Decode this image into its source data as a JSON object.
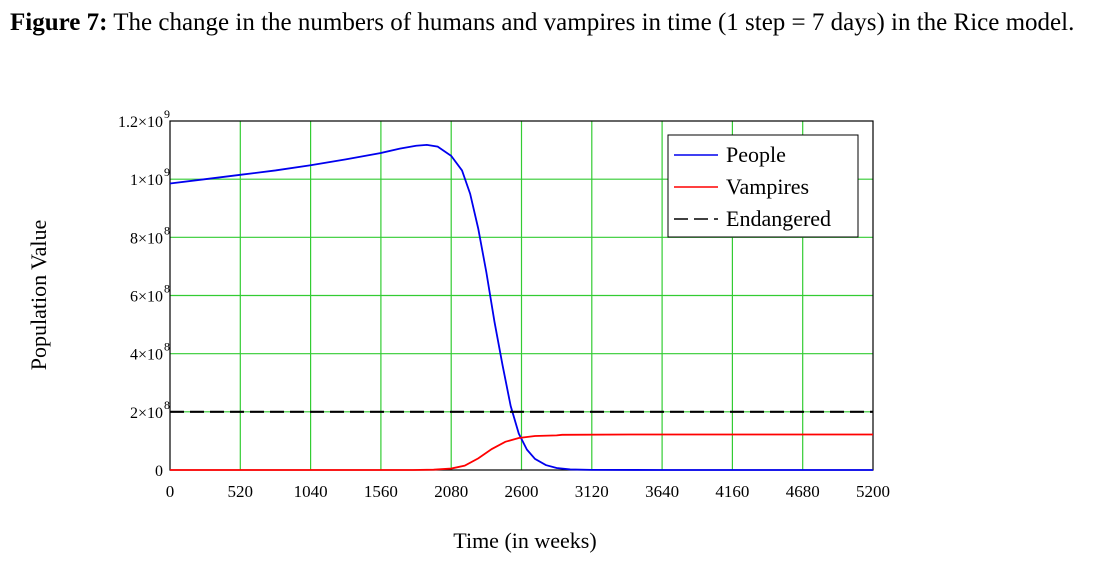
{
  "caption": {
    "label": "Figure 7:",
    "text": "The change in the numbers of humans and vampires in time (1 step = 7 days) in the Rice model."
  },
  "chart_data": {
    "type": "line",
    "xlabel": "Time (in weeks)",
    "ylabel": "Population Value",
    "xlim": [
      0,
      5200
    ],
    "ylim": [
      0,
      1200000000
    ],
    "x_ticks": [
      0,
      520,
      1040,
      1560,
      2080,
      2600,
      3120,
      3640,
      4160,
      4680,
      5200
    ],
    "y_ticks": [
      {
        "value": 0,
        "mantissa": "0",
        "exp": ""
      },
      {
        "value": 200000000,
        "mantissa": "2×10",
        "exp": "8"
      },
      {
        "value": 400000000,
        "mantissa": "4×10",
        "exp": "8"
      },
      {
        "value": 600000000,
        "mantissa": "6×10",
        "exp": "8"
      },
      {
        "value": 800000000,
        "mantissa": "8×10",
        "exp": "8"
      },
      {
        "value": 1000000000,
        "mantissa": "1×10",
        "exp": "9"
      },
      {
        "value": 1200000000,
        "mantissa": "1.2×10",
        "exp": "9"
      }
    ],
    "grid": true,
    "grid_color": "#33cc33",
    "legend_position": "top-right",
    "series": [
      {
        "name": "People",
        "color": "#0000ee",
        "style": "solid",
        "points": [
          [
            0,
            985000000
          ],
          [
            260,
            1000000000
          ],
          [
            520,
            1015000000
          ],
          [
            780,
            1030000000
          ],
          [
            1040,
            1048000000
          ],
          [
            1300,
            1068000000
          ],
          [
            1560,
            1090000000
          ],
          [
            1700,
            1105000000
          ],
          [
            1820,
            1115000000
          ],
          [
            1900,
            1118000000
          ],
          [
            1980,
            1112000000
          ],
          [
            2080,
            1080000000
          ],
          [
            2160,
            1030000000
          ],
          [
            2220,
            950000000
          ],
          [
            2280,
            830000000
          ],
          [
            2340,
            680000000
          ],
          [
            2400,
            510000000
          ],
          [
            2460,
            360000000
          ],
          [
            2520,
            220000000
          ],
          [
            2580,
            125000000
          ],
          [
            2640,
            70000000
          ],
          [
            2700,
            38000000
          ],
          [
            2780,
            17000000
          ],
          [
            2860,
            7000000
          ],
          [
            2960,
            2000000
          ],
          [
            3120,
            500000
          ],
          [
            3640,
            0
          ],
          [
            5200,
            0
          ]
        ]
      },
      {
        "name": "Vampires",
        "color": "#ff0000",
        "style": "solid",
        "points": [
          [
            0,
            0
          ],
          [
            1800,
            0
          ],
          [
            1950,
            1000000
          ],
          [
            2080,
            5000000
          ],
          [
            2180,
            15000000
          ],
          [
            2280,
            40000000
          ],
          [
            2380,
            72000000
          ],
          [
            2480,
            97000000
          ],
          [
            2580,
            110000000
          ],
          [
            2700,
            117000000
          ],
          [
            2860,
            119000000
          ],
          [
            2900,
            121000000
          ],
          [
            3400,
            122000000
          ],
          [
            4200,
            122000000
          ],
          [
            5200,
            122000000
          ]
        ]
      },
      {
        "name": "Endangered",
        "color": "#000000",
        "style": "dashed",
        "points": [
          [
            0,
            200000000
          ],
          [
            5200,
            200000000
          ]
        ]
      }
    ]
  }
}
